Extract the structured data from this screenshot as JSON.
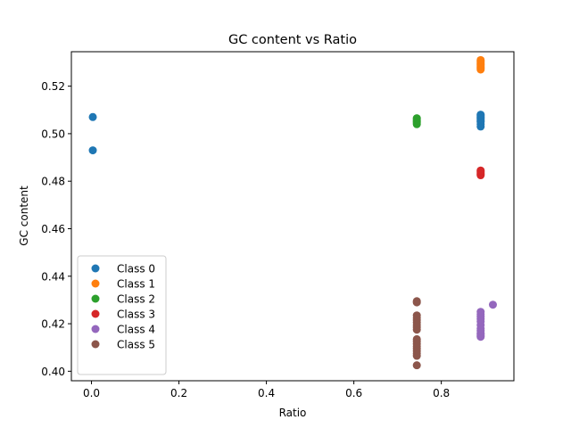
{
  "chart_data": {
    "type": "scatter",
    "title": "GC content vs Ratio",
    "xlabel": "Ratio",
    "ylabel": "GC content",
    "xlim": [
      -0.046,
      0.966
    ],
    "ylim": [
      0.396,
      0.5345
    ],
    "xticks": [
      0.0,
      0.2,
      0.4,
      0.6,
      0.8
    ],
    "xtick_labels": [
      "0.0",
      "0.2",
      "0.4",
      "0.6",
      "0.8"
    ],
    "yticks": [
      0.4,
      0.42,
      0.44,
      0.46,
      0.48,
      0.5,
      0.52
    ],
    "ytick_labels": [
      "0.40",
      "0.42",
      "0.44",
      "0.46",
      "0.48",
      "0.50",
      "0.52"
    ],
    "grid": false,
    "legend_position": "lower-left",
    "series": [
      {
        "name": "Class 0",
        "color": "#1f77b4",
        "points": [
          [
            0.003,
            0.507
          ],
          [
            0.003,
            0.493
          ],
          [
            0.89,
            0.503
          ],
          [
            0.89,
            0.504
          ],
          [
            0.89,
            0.505
          ],
          [
            0.89,
            0.5055
          ],
          [
            0.89,
            0.506
          ],
          [
            0.89,
            0.5065
          ],
          [
            0.89,
            0.507
          ],
          [
            0.89,
            0.5075
          ],
          [
            0.89,
            0.508
          ]
        ]
      },
      {
        "name": "Class 1",
        "color": "#ff7f0e",
        "points": [
          [
            0.89,
            0.527
          ],
          [
            0.89,
            0.5275
          ],
          [
            0.89,
            0.528
          ],
          [
            0.89,
            0.5285
          ],
          [
            0.89,
            0.529
          ],
          [
            0.89,
            0.5295
          ],
          [
            0.89,
            0.53
          ],
          [
            0.89,
            0.5305
          ],
          [
            0.89,
            0.531
          ]
        ]
      },
      {
        "name": "Class 2",
        "color": "#2ca02c",
        "points": [
          [
            0.744,
            0.504
          ],
          [
            0.744,
            0.5045
          ],
          [
            0.744,
            0.505
          ],
          [
            0.744,
            0.5055
          ],
          [
            0.744,
            0.506
          ],
          [
            0.744,
            0.5065
          ]
        ]
      },
      {
        "name": "Class 3",
        "color": "#d62728",
        "points": [
          [
            0.89,
            0.4825
          ],
          [
            0.89,
            0.483
          ],
          [
            0.89,
            0.4835
          ],
          [
            0.89,
            0.484
          ],
          [
            0.89,
            0.4845
          ]
        ]
      },
      {
        "name": "Class 4",
        "color": "#9467bd",
        "points": [
          [
            0.89,
            0.4145
          ],
          [
            0.89,
            0.415
          ],
          [
            0.89,
            0.4155
          ],
          [
            0.89,
            0.416
          ],
          [
            0.89,
            0.417
          ],
          [
            0.89,
            0.418
          ],
          [
            0.89,
            0.4195
          ],
          [
            0.89,
            0.421
          ],
          [
            0.89,
            0.422
          ],
          [
            0.89,
            0.423
          ],
          [
            0.89,
            0.424
          ],
          [
            0.89,
            0.425
          ],
          [
            0.918,
            0.428
          ]
        ]
      },
      {
        "name": "Class 5",
        "color": "#8c564b",
        "points": [
          [
            0.744,
            0.4025
          ],
          [
            0.744,
            0.4065
          ],
          [
            0.744,
            0.4075
          ],
          [
            0.744,
            0.4085
          ],
          [
            0.744,
            0.4095
          ],
          [
            0.744,
            0.4105
          ],
          [
            0.744,
            0.4115
          ],
          [
            0.744,
            0.4125
          ],
          [
            0.744,
            0.4135
          ],
          [
            0.744,
            0.4175
          ],
          [
            0.744,
            0.4185
          ],
          [
            0.744,
            0.4195
          ],
          [
            0.744,
            0.4205
          ],
          [
            0.744,
            0.4215
          ],
          [
            0.744,
            0.4225
          ],
          [
            0.744,
            0.4235
          ],
          [
            0.744,
            0.429
          ],
          [
            0.744,
            0.4295
          ]
        ]
      }
    ]
  }
}
